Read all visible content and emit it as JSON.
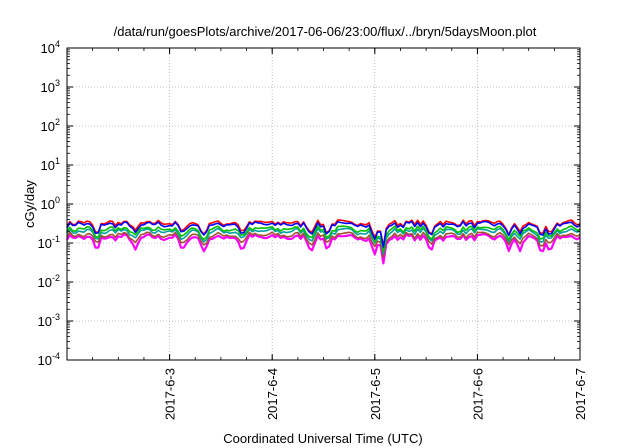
{
  "chart_data": {
    "type": "line",
    "title": "/data/run/goesPlots/archive/2017-06-06/23:00/flux/../bryn/5daysMoon.plot",
    "xlabel": "Coordinated Universal Time (UTC)",
    "ylabel": "cGy/day",
    "y_scale": "log",
    "ylim": [
      0.0001,
      10000
    ],
    "xlim": [
      "2017-06-02T00:00",
      "2017-06-07T00:00"
    ],
    "grid": true,
    "y_ticks": [
      {
        "base": "10",
        "exp": "-4",
        "value": 0.0001
      },
      {
        "base": "10",
        "exp": "-3",
        "value": 0.001
      },
      {
        "base": "10",
        "exp": "-2",
        "value": 0.01
      },
      {
        "base": "10",
        "exp": "-1",
        "value": 0.1
      },
      {
        "base": "10",
        "exp": "0",
        "value": 1
      },
      {
        "base": "10",
        "exp": "1",
        "value": 10
      },
      {
        "base": "10",
        "exp": "2",
        "value": 100
      },
      {
        "base": "10",
        "exp": "3",
        "value": 1000
      },
      {
        "base": "10",
        "exp": "4",
        "value": 10000
      }
    ],
    "x_ticks": [
      {
        "label": "2017-6-3",
        "value": "2017-06-03T00:00"
      },
      {
        "label": "2017-6-4",
        "value": "2017-06-04T00:00"
      },
      {
        "label": "2017-6-5",
        "value": "2017-06-05T00:00"
      },
      {
        "label": "2017-6-6",
        "value": "2017-06-06T00:00"
      },
      {
        "label": "2017-6-7",
        "value": "2017-06-07T00:00"
      }
    ],
    "series": [
      {
        "color": "#ff00ff",
        "level": 0.14,
        "dip": 0.45
      },
      {
        "color": "#a0522d",
        "level": 0.16,
        "dip": 0.6
      },
      {
        "color": "#00a0a0",
        "level": 0.2,
        "dip": 0.6
      },
      {
        "color": "#00c000",
        "level": 0.23,
        "dip": 0.6
      },
      {
        "color": "#ff0000",
        "level": 0.33,
        "dip": 0.55
      },
      {
        "color": "#0000ff",
        "level": 0.3,
        "dip": 0.55
      }
    ],
    "dips": [
      {
        "t": "2017-06-02T07:00",
        "f": 0.55
      },
      {
        "t": "2017-06-02T16:00",
        "f": 0.6
      },
      {
        "t": "2017-06-03T03:00",
        "f": 0.55
      },
      {
        "t": "2017-06-03T08:00",
        "f": 0.5
      },
      {
        "t": "2017-06-03T17:00",
        "f": 0.6
      },
      {
        "t": "2017-06-04T09:00",
        "f": 0.6
      },
      {
        "t": "2017-06-04T13:00",
        "f": 0.65
      },
      {
        "t": "2017-06-05T00:00",
        "f": 0.45
      },
      {
        "t": "2017-06-05T02:00",
        "f": 0.3
      },
      {
        "t": "2017-06-05T13:00",
        "f": 0.55
      },
      {
        "t": "2017-06-06T10:00",
        "f": 0.6
      },
      {
        "t": "2017-06-06T07:30",
        "f": 0.55
      },
      {
        "t": "2017-06-06T15:00",
        "f": 0.4
      },
      {
        "t": "2017-06-06T17:00",
        "f": 0.5
      }
    ]
  }
}
